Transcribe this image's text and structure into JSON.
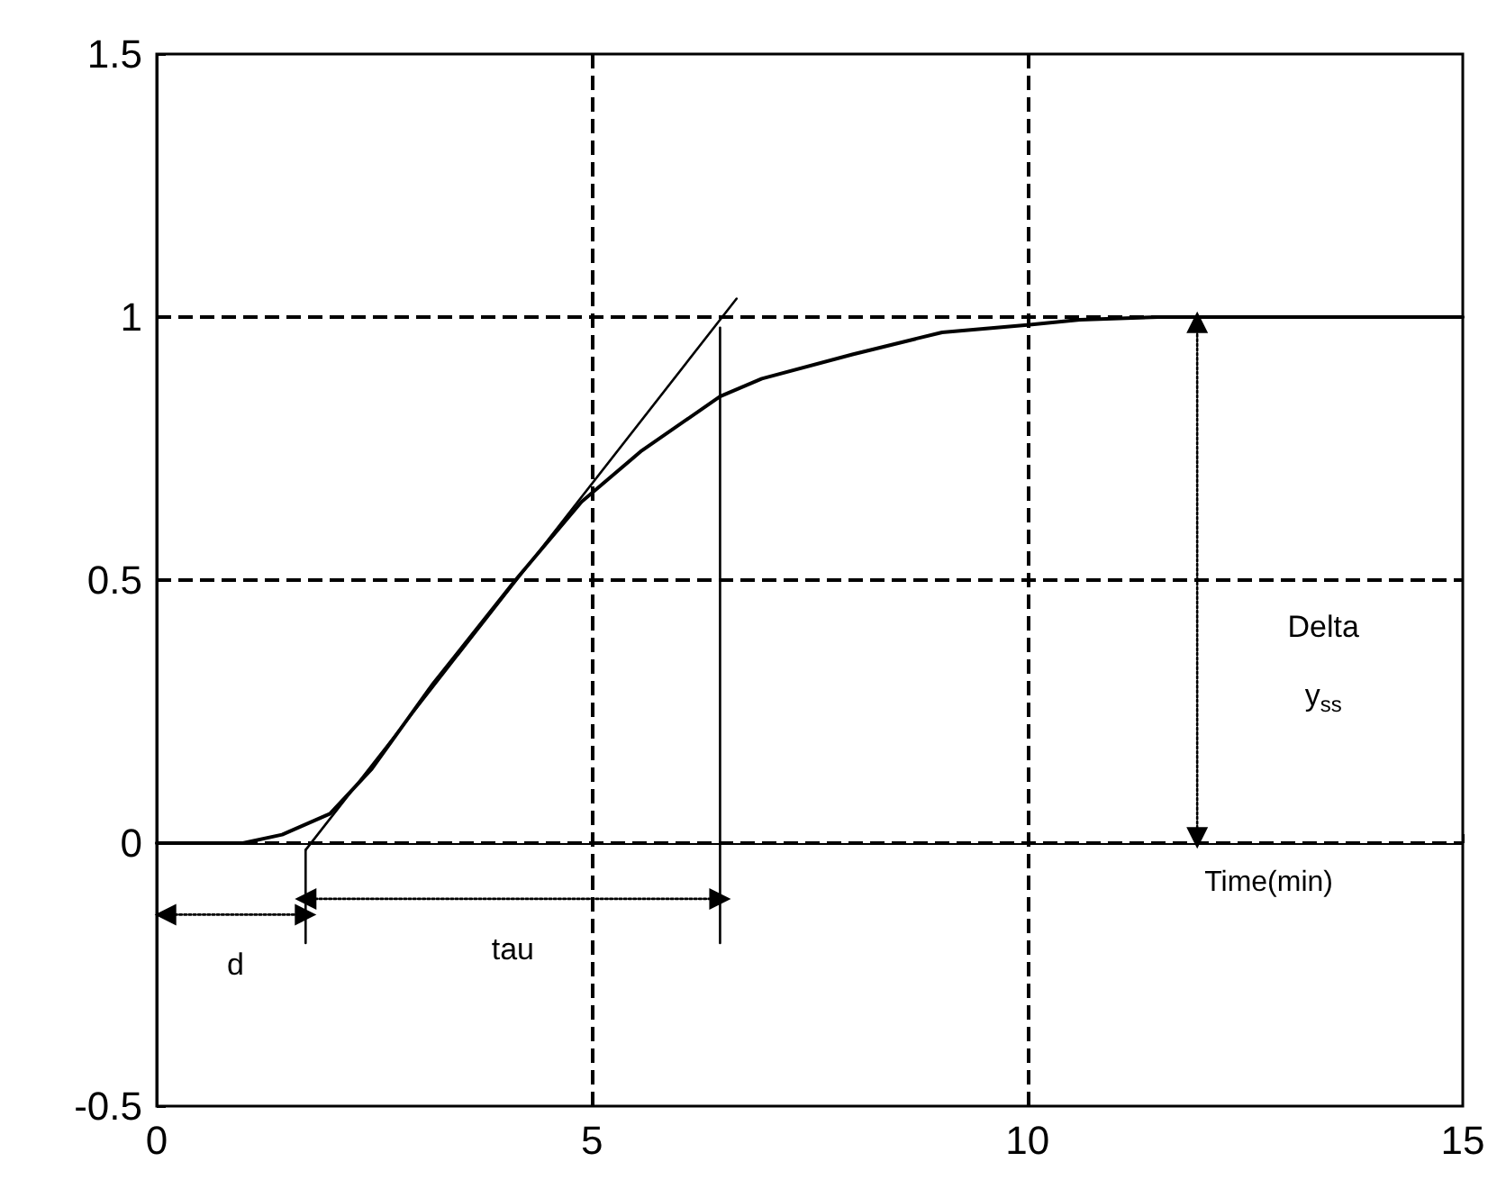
{
  "chart_data": {
    "type": "line",
    "xlabel": "Time(min)",
    "xlim": [
      0,
      15
    ],
    "xticks": [
      0,
      5,
      10,
      15
    ],
    "ylim": [
      -0.5,
      1.5
    ],
    "yticks": [
      -0.5,
      0,
      0.5,
      1,
      1.5
    ],
    "marker": "none",
    "line_style": "solid",
    "series": [
      {
        "color": "#000000",
        "x": [
          0,
          0.5,
          0.99,
          1.44,
          1.99,
          2.47,
          3.16,
          4.12,
          4.88,
          5.57,
          6.47,
          6.95,
          7.99,
          9.02,
          10,
          10.6,
          11.5,
          13,
          15
        ],
        "values": [
          0,
          0,
          0,
          0.016,
          0.056,
          0.141,
          0.3,
          0.5,
          0.649,
          0.746,
          0.849,
          0.883,
          0.929,
          0.971,
          0.985,
          0.995,
          1,
          1,
          1
        ]
      },
      {
        "color": "#000000",
        "x": [
          1.71,
          6.66
        ],
        "values": [
          -0.013,
          1.035
        ]
      },
      {
        "color": "#000000",
        "x": [
          1.71,
          1.71
        ],
        "values": [
          -0.013,
          -0.19
        ]
      },
      {
        "color": "#000000",
        "x": [
          6.47,
          6.47
        ],
        "values": [
          0.98,
          -0.19
        ]
      },
      {
        "color": "#000000",
        "x": [
          0.1,
          1.71
        ],
        "values": [
          -0.136,
          -0.136
        ],
        "line_style": "dotted",
        "marker": "triangle"
      },
      {
        "color": "#000000",
        "x": [
          1.71,
          6.47
        ],
        "values": [
          -0.106,
          -0.106
        ],
        "line_style": "dotted",
        "marker": "triangle"
      },
      {
        "color": "#000000",
        "x": [
          11.95,
          11.95
        ],
        "values": [
          0.01,
          0.99
        ],
        "line_style": "dotted",
        "marker": "triangle"
      }
    ],
    "ref_lines": [
      {
        "axis": "y",
        "value": 0,
        "line_style": "dashed"
      },
      {
        "axis": "y",
        "value": 0.5,
        "line_style": "dashed"
      },
      {
        "axis": "y",
        "value": 1,
        "line_style": "dashed"
      },
      {
        "axis": "x",
        "value": 5,
        "line_style": "dashed"
      },
      {
        "axis": "x",
        "value": 10,
        "line_style": "dashed"
      }
    ],
    "annotations": [
      "d",
      "tau",
      "Delta\ny$_{ss}$"
    ]
  }
}
